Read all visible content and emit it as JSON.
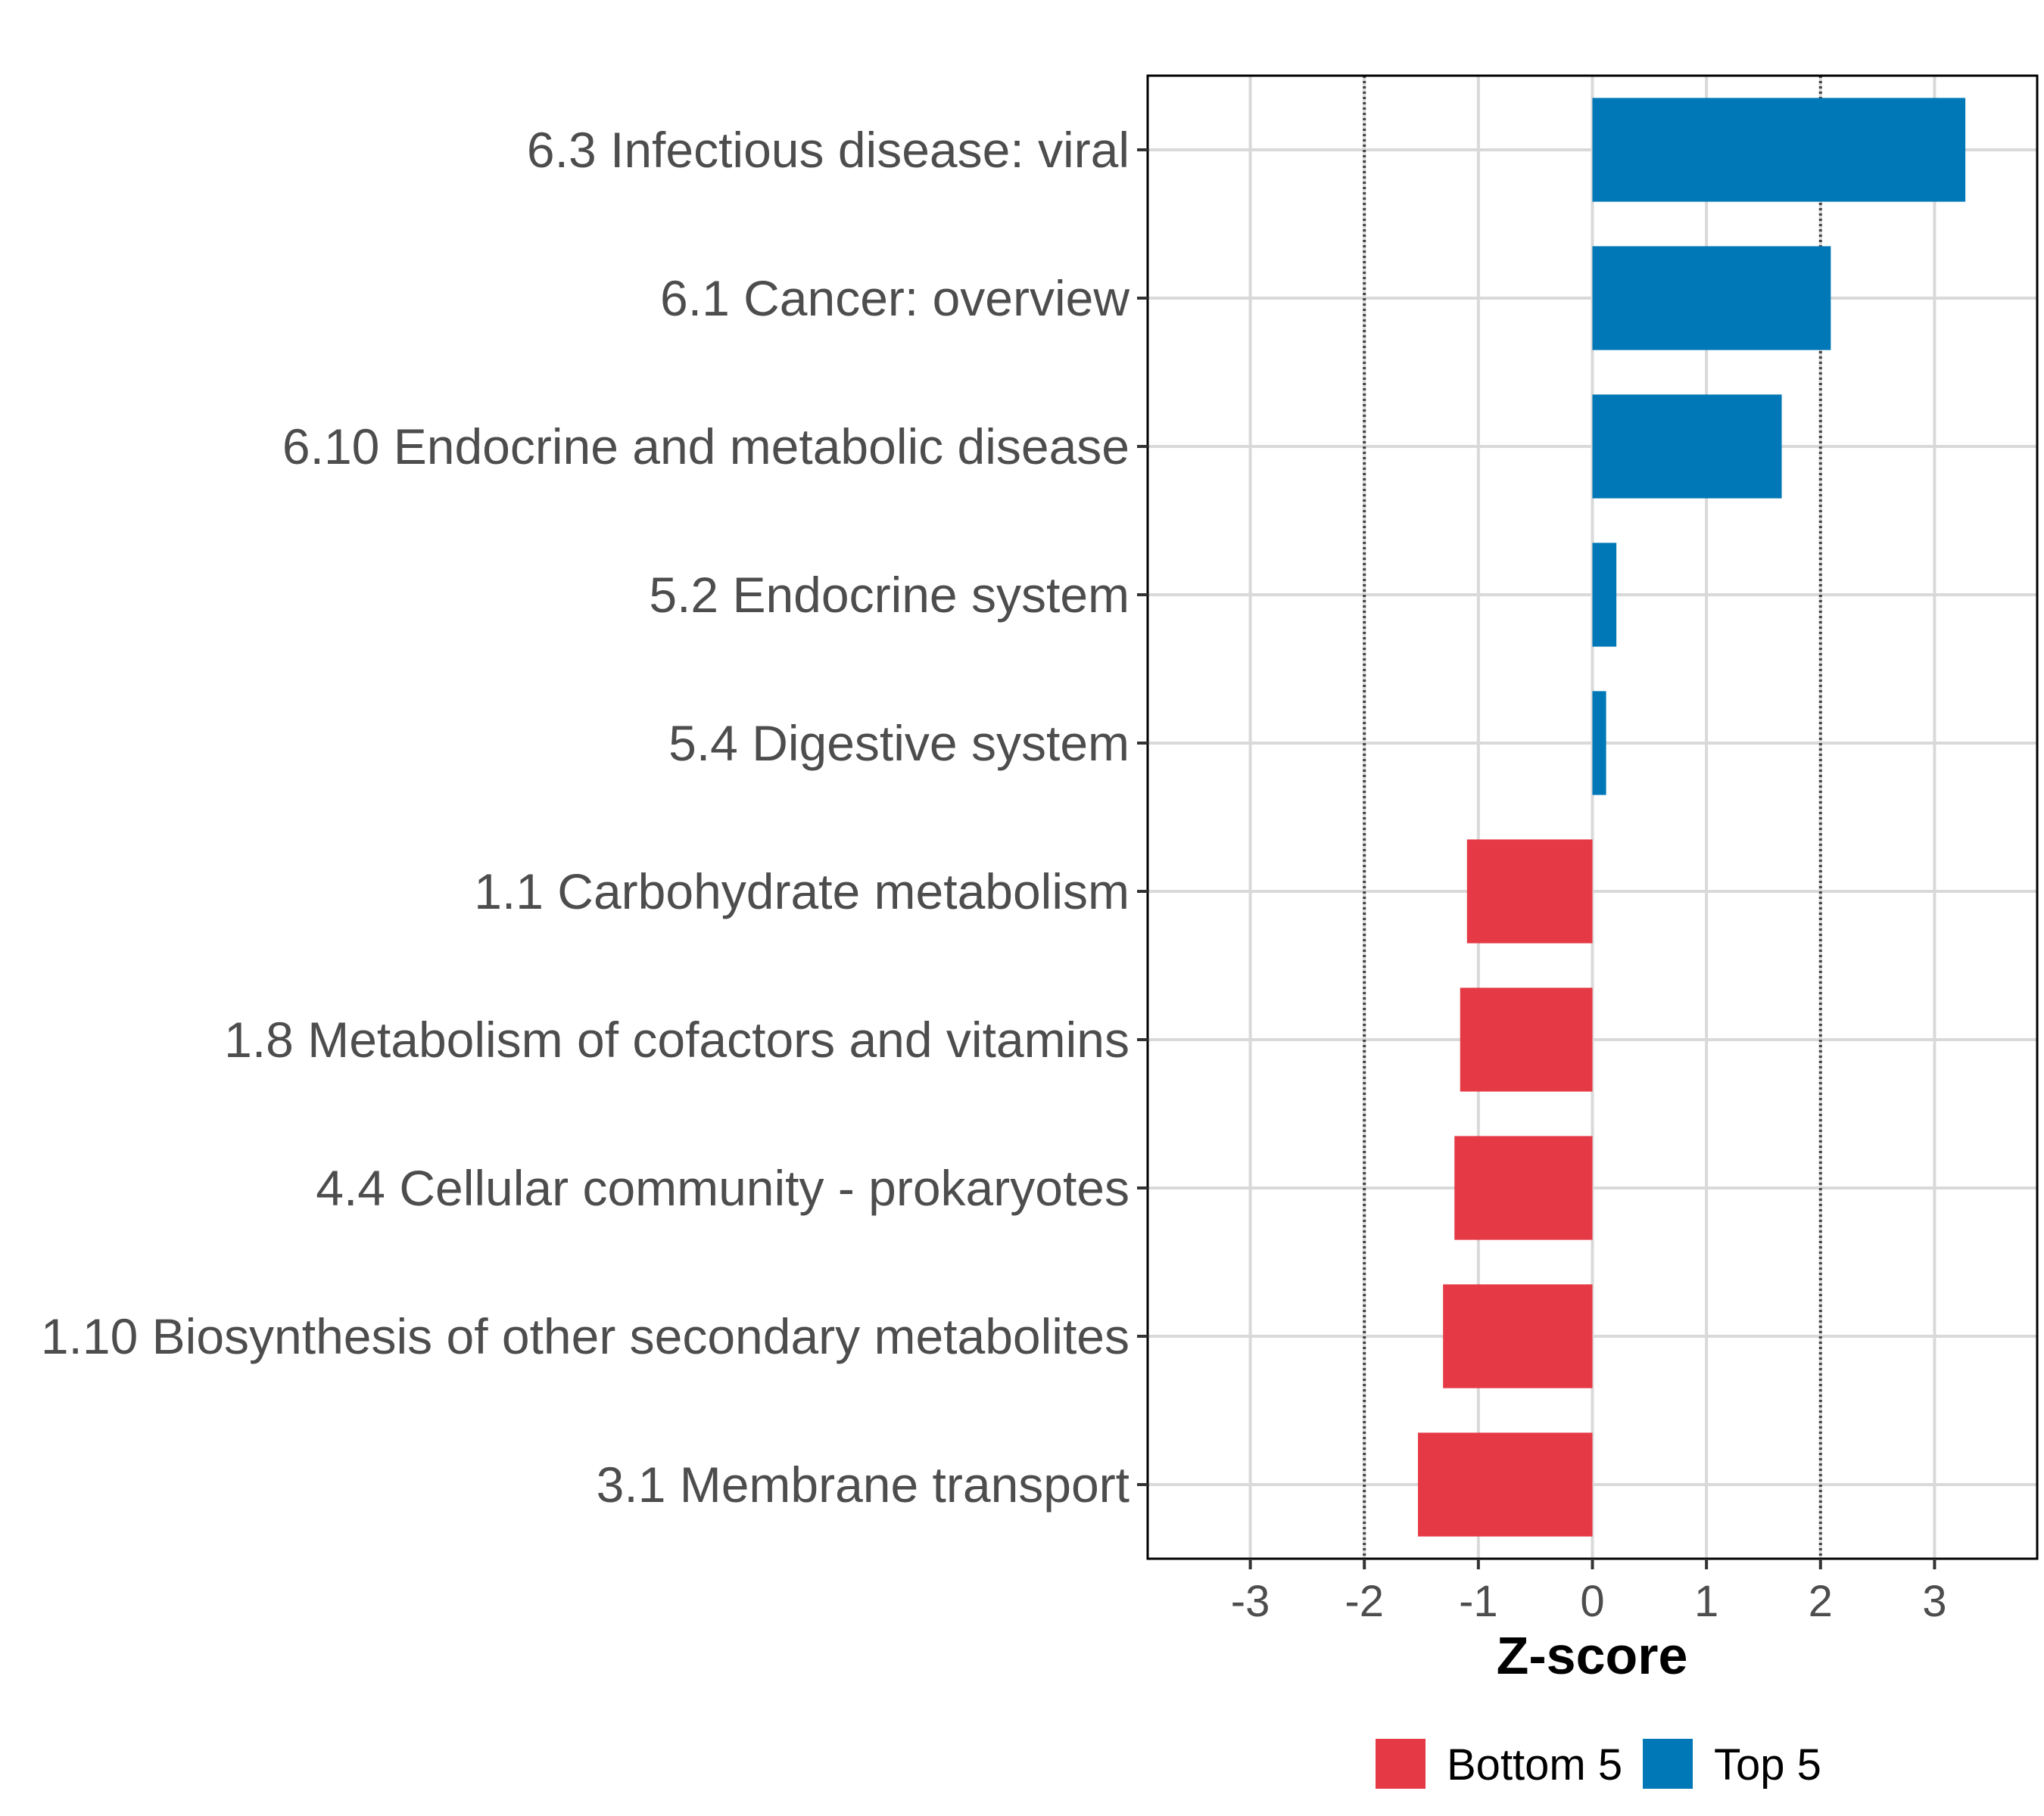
{
  "chart_data": {
    "type": "bar",
    "orientation": "horizontal",
    "categories": [
      "6.3 Infectious disease: viral",
      "6.1 Cancer: overview",
      "6.10 Endocrine and metabolic disease",
      "5.2 Endocrine system",
      "5.4 Digestive system",
      "1.1 Carbohydrate metabolism",
      "1.8 Metabolism of cofactors and vitamins",
      "4.4 Cellular community - prokaryotes",
      "1.10 Biosynthesis of other secondary metabolites",
      "3.1 Membrane transport"
    ],
    "values": [
      3.27,
      2.09,
      1.66,
      0.21,
      0.12,
      -1.1,
      -1.16,
      -1.21,
      -1.31,
      -1.53
    ],
    "groups": [
      "Top 5",
      "Top 5",
      "Top 5",
      "Top 5",
      "Top 5",
      "Bottom 5",
      "Bottom 5",
      "Bottom 5",
      "Bottom 5",
      "Bottom 5"
    ],
    "title": "",
    "xlabel": "Z-score",
    "ylabel": "",
    "xlim": [
      -3.9,
      3.9
    ],
    "xticks": [
      -3,
      -2,
      -1,
      0,
      1,
      2,
      3
    ],
    "xtick_labels": [
      "-3",
      "-2",
      "-1",
      "0",
      "1",
      "2",
      "3"
    ],
    "reference_lines": [
      -2,
      2
    ],
    "grid": true,
    "legend": {
      "position": "bottom",
      "entries": [
        {
          "label": "Bottom 5",
          "color": "#e63946"
        },
        {
          "label": "Top 5",
          "color": "#0077b6"
        }
      ]
    }
  }
}
